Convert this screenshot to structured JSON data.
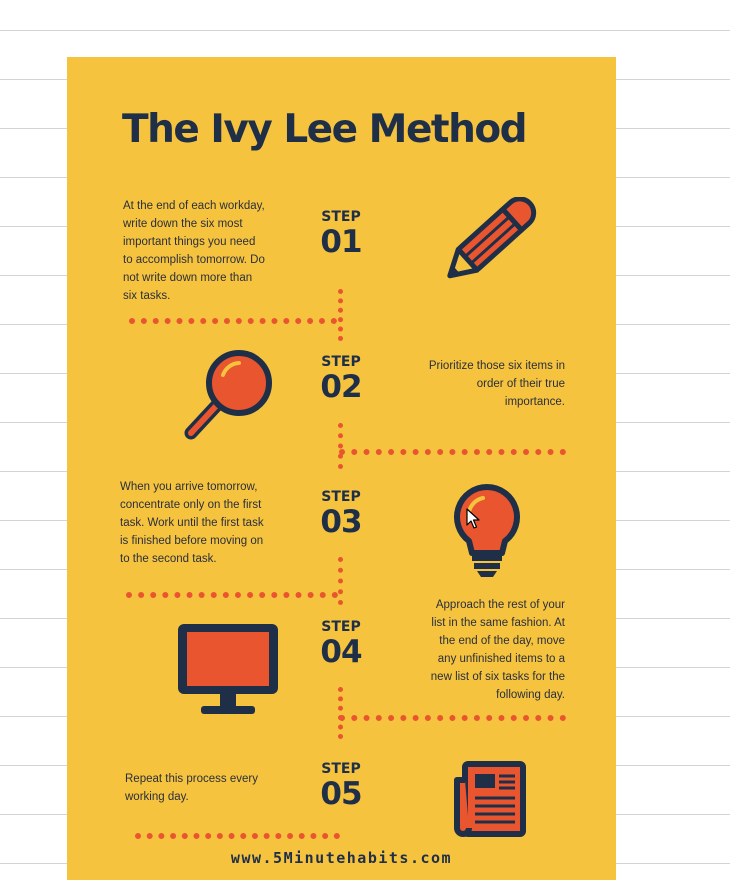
{
  "title": "The Ivy Lee Method",
  "steps": [
    {
      "label": "STEP",
      "number": "01",
      "icon": "pencil-icon",
      "text_lines": [
        "At the end of each workday,",
        "write down the six most",
        "important things you need",
        "to accomplish tomorrow. Do",
        "not write down more than",
        "six tasks."
      ]
    },
    {
      "label": "STEP",
      "number": "02",
      "icon": "magnifying-glass-icon",
      "text_lines": [
        "Prioritize those six items in",
        "order of their true",
        "importance."
      ]
    },
    {
      "label": "STEP",
      "number": "03",
      "icon": "light-bulb-icon",
      "text_lines": [
        "When you arrive tomorrow,",
        "concentrate only on the first",
        "task. Work until the first task",
        "is finished before moving on",
        "to the second task."
      ]
    },
    {
      "label": "STEP",
      "number": "04",
      "icon": "computer-monitor-icon",
      "text_lines": [
        "Approach the rest of your",
        "list in the same fashion. At",
        "the end of the day, move",
        "any unfinished items to a",
        "new list of six tasks for the",
        "following day."
      ]
    },
    {
      "label": "STEP",
      "number": "05",
      "icon": "newspaper-icon",
      "text_lines": [
        "Repeat this process every",
        "working day."
      ]
    }
  ],
  "footer": "www.5Minutehabits.com",
  "colors": {
    "poster_background": "#f6c33f",
    "accent": "#e9552e",
    "navy": "#1f2f48"
  }
}
